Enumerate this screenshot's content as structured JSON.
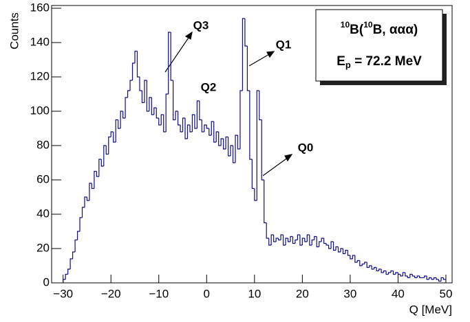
{
  "chart_data": {
    "type": "histogram",
    "y_label": "Counts",
    "x_label": "Q [MeV]",
    "color": "#0b0b8c",
    "bins": [
      -30,
      -29.5,
      -29,
      -28.5,
      -28,
      -27.5,
      -27,
      -26.5,
      -26,
      -25.5,
      -25,
      -24.5,
      -24,
      -23.5,
      -23,
      -22.5,
      -22,
      -21.5,
      -21,
      -20.5,
      -20,
      -19.5,
      -19,
      -18.5,
      -18,
      -17.5,
      -17,
      -16.5,
      -16,
      -15.5,
      -15,
      -14.5,
      -14,
      -13.5,
      -13,
      -12.5,
      -12,
      -11.5,
      -11,
      -10.5,
      -10,
      -9.5,
      -9,
      -8.5,
      -8,
      -7.5,
      -7,
      -6.5,
      -6,
      -5.5,
      -5,
      -4.5,
      -4,
      -3.5,
      -3,
      -2.5,
      -2,
      -1.5,
      -1,
      -0.5,
      0,
      0.5,
      1,
      1.5,
      2,
      2.5,
      3,
      3.5,
      4,
      4.5,
      5,
      5.5,
      6,
      6.5,
      7,
      7.5,
      8,
      8.5,
      9,
      9.5,
      10,
      10.5,
      11,
      11.5,
      12,
      12.5,
      13,
      13.5,
      14,
      14.5,
      15,
      15.5,
      16,
      16.5,
      17,
      17.5,
      18,
      18.5,
      19,
      19.5,
      20,
      20.5,
      21,
      21.5,
      22,
      22.5,
      23,
      23.5,
      24,
      24.5,
      25,
      25.5,
      26,
      26.5,
      27,
      27.5,
      28,
      28.5,
      29,
      29.5,
      30,
      30.5,
      31,
      31.5,
      32,
      32.5,
      33,
      33.5,
      34,
      34.5,
      35,
      35.5,
      36,
      36.5,
      37,
      37.5,
      38,
      38.5,
      39,
      39.5,
      40,
      40.5,
      41,
      41.5,
      42,
      42.5,
      43,
      43.5,
      44,
      44.5,
      45,
      45.5,
      46,
      46.5,
      47,
      47.5,
      48,
      48.5,
      49,
      49.5,
      50
    ],
    "values": [
      2,
      5,
      8,
      14,
      18,
      25,
      30,
      38,
      44,
      50,
      48,
      58,
      55,
      65,
      62,
      72,
      68,
      80,
      75,
      85,
      88,
      82,
      95,
      90,
      100,
      96,
      108,
      112,
      118,
      128,
      135,
      120,
      112,
      105,
      118,
      100,
      108,
      98,
      102,
      96,
      92,
      98,
      88,
      110,
      146,
      118,
      95,
      100,
      92,
      88,
      96,
      84,
      92,
      88,
      98,
      90,
      106,
      95,
      88,
      92,
      90,
      86,
      94,
      82,
      88,
      80,
      84,
      78,
      85,
      74,
      80,
      70,
      86,
      78,
      112,
      154,
      138,
      112,
      72,
      55,
      48,
      112,
      95,
      60,
      35,
      26,
      22,
      28,
      24,
      26,
      25,
      28,
      22,
      26,
      24,
      27,
      23,
      25,
      28,
      22,
      26,
      24,
      28,
      22,
      25,
      27,
      21,
      24,
      26,
      23,
      22,
      20,
      24,
      19,
      21,
      18,
      20,
      17,
      19,
      16,
      14,
      16,
      12,
      13,
      10,
      11,
      12,
      9,
      10,
      8,
      9,
      7,
      8,
      6,
      7,
      5,
      6,
      7,
      5,
      6,
      5,
      4,
      6,
      4,
      3,
      5,
      4,
      3,
      4,
      3,
      3,
      4,
      2,
      3,
      2,
      3,
      2,
      1,
      3,
      2
    ],
    "xlim": [
      -32.4,
      51.3
    ],
    "ylim": [
      0,
      161.6
    ],
    "xticks": [
      {
        "value": -30,
        "label": "−30"
      },
      {
        "value": -20,
        "label": "−20"
      },
      {
        "value": -10,
        "label": "−10"
      },
      0,
      10,
      20,
      30,
      40,
      50
    ],
    "yticks": [
      0,
      20,
      40,
      60,
      80,
      100,
      120,
      140,
      160
    ],
    "annotations": [
      "Q3",
      "Q1",
      "Q2",
      "Q0"
    ],
    "legend": {
      "reaction": {
        "mass1": "10",
        "target": "B(",
        "mass2": "10",
        "rest": "B, ααα)"
      },
      "energy": {
        "symbol": "E",
        "sub": "p",
        "rest": " = 72.2 MeV"
      }
    }
  }
}
